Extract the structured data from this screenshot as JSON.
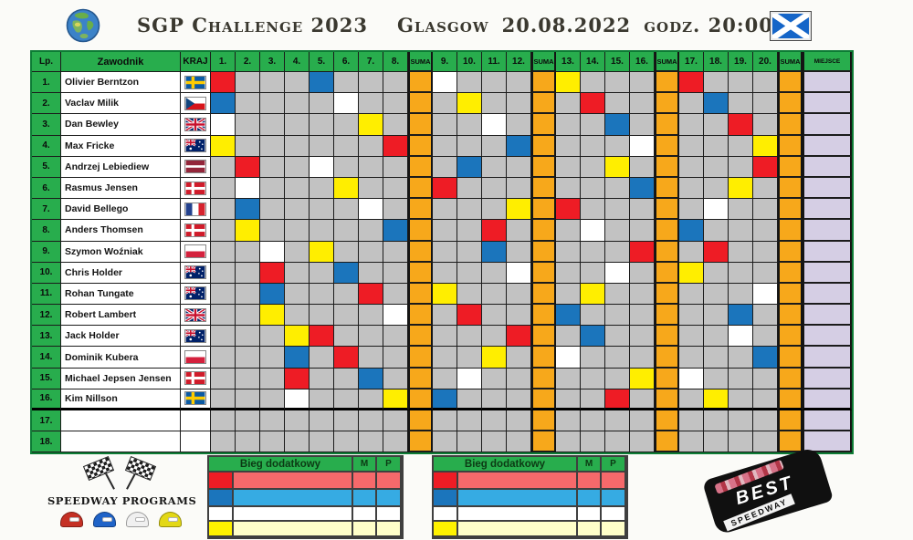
{
  "header": {
    "title": "SGP Challenge 2023",
    "venue": "Glasgow",
    "date": "20.08.2022",
    "time": "godz. 20:00",
    "flag": "scotland"
  },
  "table": {
    "col_lp": "Lp.",
    "col_rider": "Zawodnik",
    "col_country": "KRAJ",
    "col_suma": "SUMA",
    "col_place": "MIEJSCE",
    "heat_count": 20,
    "suma_after": [
      8,
      12,
      16,
      20
    ],
    "colors": {
      "header_green": "#28ad4d",
      "cell_gray": "#c2c2c2",
      "suma_orange": "#f7a81b",
      "place_lavender": "#d5cee4",
      "helmet_red": "#ee1c25",
      "helmet_blue": "#1b75bc",
      "helmet_white": "#ffffff",
      "helmet_yellow": "#ffee00"
    },
    "riders": [
      {
        "no": "1.",
        "name": "Olivier Berntzon",
        "country": "se",
        "heats": {
          "1": "red",
          "5": "blue",
          "9": "white",
          "13": "yellow",
          "17": "red"
        }
      },
      {
        "no": "2.",
        "name": "Vaclav Milik",
        "country": "cz",
        "heats": {
          "1": "blue",
          "6": "white",
          "10": "yellow",
          "14": "red",
          "18": "blue"
        }
      },
      {
        "no": "3.",
        "name": "Dan Bewley",
        "country": "gb",
        "heats": {
          "1": "white",
          "7": "yellow",
          "11": "white",
          "15": "blue",
          "19": "red"
        }
      },
      {
        "no": "4.",
        "name": "Max Fricke",
        "country": "au",
        "heats": {
          "1": "yellow",
          "8": "red",
          "12": "blue",
          "16": "white",
          "20": "yellow"
        }
      },
      {
        "no": "5.",
        "name": "Andrzej Lebiediew",
        "country": "lv",
        "heats": {
          "2": "red",
          "5": "white",
          "10": "blue",
          "15": "yellow",
          "20": "red"
        }
      },
      {
        "no": "6.",
        "name": "Rasmus Jensen",
        "country": "dk",
        "heats": {
          "2": "white",
          "6": "yellow",
          "9": "red",
          "16": "blue",
          "19": "yellow"
        }
      },
      {
        "no": "7.",
        "name": "David Bellego",
        "country": "fr",
        "heats": {
          "2": "blue",
          "7": "white",
          "12": "yellow",
          "13": "red",
          "18": "white"
        }
      },
      {
        "no": "8.",
        "name": "Anders Thomsen",
        "country": "dk",
        "heats": {
          "2": "yellow",
          "8": "blue",
          "11": "red",
          "14": "white",
          "17": "blue"
        }
      },
      {
        "no": "9.",
        "name": "Szymon Woźniak",
        "country": "pl",
        "heats": {
          "3": "white",
          "5": "yellow",
          "11": "blue",
          "16": "red",
          "18": "red"
        }
      },
      {
        "no": "10.",
        "name": "Chris Holder",
        "country": "au",
        "heats": {
          "3": "red",
          "6": "blue",
          "12": "white",
          "15": "white",
          "17": "yellow"
        }
      },
      {
        "no": "11.",
        "name": "Rohan Tungate",
        "country": "au",
        "heats": {
          "3": "blue",
          "7": "red",
          "9": "yellow",
          "14": "yellow",
          "20": "white"
        }
      },
      {
        "no": "12.",
        "name": "Robert Lambert",
        "country": "gb",
        "heats": {
          "3": "yellow",
          "8": "white",
          "10": "red",
          "13": "blue",
          "19": "blue"
        }
      },
      {
        "no": "13.",
        "name": "Jack Holder",
        "country": "au",
        "heats": {
          "4": "yellow",
          "5": "red",
          "12": "red",
          "14": "blue",
          "19": "white"
        }
      },
      {
        "no": "14.",
        "name": "Dominik Kubera",
        "country": "pl",
        "heats": {
          "4": "blue",
          "6": "red",
          "11": "yellow",
          "13": "white",
          "20": "blue"
        }
      },
      {
        "no": "15.",
        "name": "Michael Jepsen Jensen",
        "country": "dk",
        "heats": {
          "4": "red",
          "7": "blue",
          "10": "white",
          "16": "yellow",
          "17": "white"
        }
      },
      {
        "no": "16.",
        "name": "Kim Nillson",
        "country": "se",
        "heats": {
          "4": "white",
          "8": "yellow",
          "9": "blue",
          "15": "red",
          "18": "yellow"
        }
      },
      {
        "no": "17.",
        "name": "",
        "country": "",
        "heats": {}
      },
      {
        "no": "18.",
        "name": "",
        "country": "",
        "heats": {}
      }
    ]
  },
  "extra_heat": {
    "title": "Bieg dodatkowy",
    "col_m": "M",
    "col_p": "P",
    "rows": [
      {
        "helmet": "red",
        "swatch": "#ee1c25",
        "band": "#f5696b"
      },
      {
        "helmet": "blue",
        "swatch": "#1b75bc",
        "band": "#36abe3"
      },
      {
        "helmet": "white",
        "swatch": "#ffffff",
        "band": "#ffffff"
      },
      {
        "helmet": "yellow",
        "swatch": "#fff200",
        "band": "#ffffc9"
      }
    ]
  },
  "footer": {
    "programs_label": "SPEEDWAY PROGRAMS",
    "helmets": [
      "#c53024",
      "#1f63c8",
      "#f0f0f0",
      "#e3d816"
    ],
    "stamp_line1": "BEST",
    "stamp_line2": "SPEEDWAY"
  }
}
